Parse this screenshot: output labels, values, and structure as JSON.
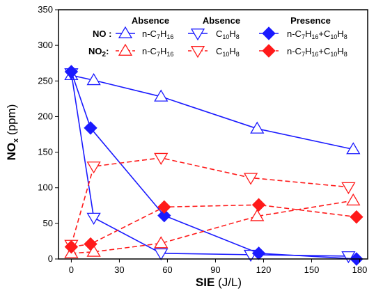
{
  "chart_data": {
    "type": "line",
    "xlabel_main": "SIE",
    "xlabel_unit": " (J/L)",
    "ylabel_main": "NO",
    "ylabel_sub": "x",
    "ylabel_unit": " (ppm)",
    "xlim": [
      -8,
      185
    ],
    "ylim": [
      0,
      350
    ],
    "xticks": [
      0,
      30,
      60,
      90,
      120,
      150,
      180
    ],
    "yticks": [
      0,
      50,
      100,
      150,
      200,
      250,
      300,
      350
    ],
    "grid": false,
    "legend": {
      "placement": "top",
      "headers": [
        "Absence",
        "Absence",
        "Presence"
      ],
      "row_labels": [
        "NO :",
        "NO2:"
      ],
      "entries": [
        "n-C7H16",
        "C10H8",
        "n-C7H16+C10H8"
      ]
    },
    "colors": {
      "blue": "#1a1aff",
      "red": "#ff1a1a"
    },
    "series": [
      {
        "gas": "NO",
        "fuel": "n-C7H16",
        "condition": "Absence",
        "color": "blue",
        "marker": "triangle-up-open",
        "dash": false,
        "points": [
          [
            0,
            258
          ],
          [
            14,
            251
          ],
          [
            56,
            228
          ],
          [
            116,
            183
          ],
          [
            176,
            154
          ]
        ]
      },
      {
        "gas": "NO",
        "fuel": "C10H8",
        "condition": "Absence",
        "color": "blue",
        "marker": "triangle-down-open",
        "dash": false,
        "points": [
          [
            0,
            261
          ],
          [
            14,
            58
          ],
          [
            56,
            8
          ],
          [
            112,
            6
          ],
          [
            173,
            4
          ]
        ]
      },
      {
        "gas": "NO",
        "fuel": "n-C7H16+C10H8",
        "condition": "Presence",
        "color": "blue",
        "marker": "diamond-filled",
        "dash": false,
        "points": [
          [
            0,
            263
          ],
          [
            12,
            184
          ],
          [
            58,
            61
          ],
          [
            117,
            8
          ],
          [
            178,
            0
          ]
        ]
      },
      {
        "gas": "NO2",
        "fuel": "n-C7H16",
        "condition": "Absence",
        "color": "red",
        "marker": "triangle-up-open",
        "dash": true,
        "points": [
          [
            0,
            8
          ],
          [
            14,
            10
          ],
          [
            56,
            22
          ],
          [
            116,
            60
          ],
          [
            176,
            82
          ]
        ]
      },
      {
        "gas": "NO2",
        "fuel": "C10H8",
        "condition": "Absence",
        "color": "red",
        "marker": "triangle-down-open",
        "dash": true,
        "points": [
          [
            0,
            20
          ],
          [
            14,
            130
          ],
          [
            56,
            142
          ],
          [
            112,
            114
          ],
          [
            173,
            101
          ]
        ]
      },
      {
        "gas": "NO2",
        "fuel": "n-C7H16+C10H8",
        "condition": "Presence",
        "color": "red",
        "marker": "diamond-filled",
        "dash": true,
        "points": [
          [
            0,
            17
          ],
          [
            12,
            21
          ],
          [
            58,
            73
          ],
          [
            117,
            76
          ],
          [
            178,
            59
          ]
        ]
      }
    ]
  }
}
